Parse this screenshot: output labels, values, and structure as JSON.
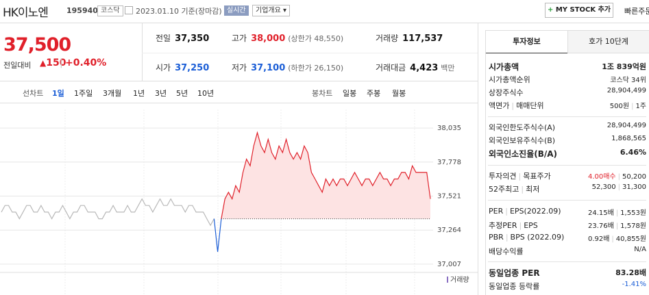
{
  "header": {
    "name": "HK이노엔",
    "code": "195940",
    "market": "코스닥",
    "date_basis": "2023.01.10 기준(장마감)",
    "realtime": "실시간",
    "company_overview": "기업개요",
    "my_stock": "MY STOCK 추가",
    "quick_order": "빠른주문"
  },
  "price": {
    "current": "37,500",
    "change_label": "전일대비",
    "change": "150",
    "change_pct": "+0.40%"
  },
  "summary": [
    [
      {
        "label": "전일",
        "value": "37,350",
        "color": "#111111"
      },
      {
        "label": "고가",
        "value": "38,000",
        "note": "(상한가 48,550)",
        "color": "#e0202a"
      },
      {
        "label": "거래량",
        "value": "117,537",
        "color": "#111111"
      }
    ],
    [
      {
        "label": "시가",
        "value": "37,250",
        "color": "#1a5dd6"
      },
      {
        "label": "저가",
        "value": "37,100",
        "note": "(하한가 26,150)",
        "color": "#1a5dd6"
      },
      {
        "label": "거래대금",
        "value": "4,423",
        "note": "백만",
        "color": "#111111"
      }
    ]
  ],
  "chart_tabs": {
    "line_label": "선차트",
    "line_periods": [
      "1일",
      "1주일",
      "3개월",
      "1년",
      "3년",
      "5년",
      "10년"
    ],
    "candle_label": "봉차트",
    "candle_periods": [
      "일봉",
      "주봉",
      "월봉"
    ]
  },
  "chart_data": {
    "type": "line",
    "ylim": [
      36960,
      38175
    ],
    "yticks": [
      {
        "value": 38035,
        "label": "38,035"
      },
      {
        "value": 37778,
        "label": "37,778"
      },
      {
        "value": 37521,
        "label": "37,521"
      },
      {
        "value": 37264,
        "label": "37,264"
      },
      {
        "value": 37007,
        "label": "37,007"
      }
    ],
    "baseline": 37350,
    "volume_label": "거래량",
    "grid": true,
    "series": [
      {
        "color": "#b8b8b8",
        "values": [
          37400,
          37450,
          37450,
          37400,
          37400,
          37350,
          37400,
          37450,
          37450,
          37400,
          37400,
          37450,
          37400,
          37400,
          37350,
          37400,
          37400,
          37450,
          37400,
          37350,
          37400,
          37400,
          37450,
          37450,
          37400,
          37400,
          37400,
          37350,
          37350,
          37400,
          37400,
          37450,
          37400,
          37400,
          37400,
          37450,
          37400,
          37400,
          37450,
          37500,
          37450,
          37450,
          37400,
          37450,
          37500,
          37450,
          37450,
          37500,
          37450,
          37450,
          37450,
          37400,
          37450,
          37450,
          37400,
          37400,
          37400,
          37350,
          37300,
          37350,
          null,
          null,
          null,
          null,
          null,
          null,
          null,
          null,
          null,
          null,
          null,
          null,
          null,
          null,
          null,
          null,
          null,
          null,
          null,
          null,
          null,
          null,
          null,
          null,
          null,
          null,
          null,
          null,
          null,
          null,
          null,
          null,
          null,
          null,
          null,
          null,
          null,
          null,
          null,
          null,
          null,
          null,
          null,
          null,
          null,
          null,
          null,
          null,
          null,
          null,
          null,
          null,
          null,
          null,
          null,
          null,
          null,
          null,
          null,
          null
        ]
      },
      {
        "color": "#1a5dd6",
        "values": [
          null,
          null,
          null,
          null,
          null,
          null,
          null,
          null,
          null,
          null,
          null,
          null,
          null,
          null,
          null,
          null,
          null,
          null,
          null,
          null,
          null,
          null,
          null,
          null,
          null,
          null,
          null,
          null,
          null,
          null,
          null,
          null,
          null,
          null,
          null,
          null,
          null,
          null,
          null,
          null,
          null,
          null,
          null,
          null,
          null,
          null,
          null,
          null,
          null,
          null,
          null,
          null,
          null,
          null,
          null,
          null,
          null,
          null,
          null,
          37350,
          37100,
          37350,
          null,
          null,
          null,
          null,
          null,
          null,
          null,
          null,
          null,
          null,
          null,
          null,
          null,
          null,
          null,
          null,
          null,
          null,
          null,
          null,
          null,
          null,
          null,
          null,
          null,
          null,
          null,
          null,
          null,
          null,
          null,
          null,
          null,
          null,
          null,
          null,
          null,
          null,
          null,
          null,
          null,
          null,
          null,
          null,
          null,
          null,
          null,
          null,
          null,
          null,
          null,
          null,
          null,
          null,
          null,
          null
        ]
      },
      {
        "color": "#e0202a",
        "fill": "#fde3e3",
        "values": [
          null,
          null,
          null,
          null,
          null,
          null,
          null,
          null,
          null,
          null,
          null,
          null,
          null,
          null,
          null,
          null,
          null,
          null,
          null,
          null,
          null,
          null,
          null,
          null,
          null,
          null,
          null,
          null,
          null,
          null,
          null,
          null,
          null,
          null,
          null,
          null,
          null,
          null,
          null,
          null,
          null,
          null,
          null,
          null,
          null,
          null,
          null,
          null,
          null,
          null,
          null,
          null,
          null,
          null,
          null,
          null,
          null,
          null,
          null,
          null,
          null,
          37350,
          37500,
          37550,
          37500,
          37600,
          37550,
          37700,
          37800,
          37750,
          37900,
          38000,
          37900,
          37850,
          37950,
          37850,
          37800,
          37900,
          37850,
          37950,
          37850,
          37800,
          37850,
          37800,
          37900,
          37850,
          37700,
          37650,
          37600,
          37550,
          37650,
          37600,
          37650,
          37600,
          37650,
          37650,
          37600,
          37650,
          37700,
          37650,
          37600,
          37650,
          37650,
          37600,
          37650,
          37700,
          37650,
          37650,
          37600,
          37650,
          37650,
          37700,
          37700,
          37650,
          37750,
          37700,
          37700,
          37700,
          37700,
          37500
        ]
      }
    ]
  },
  "invest": {
    "tabs": [
      "투자정보",
      "호가 10단계"
    ],
    "groups": [
      [
        {
          "labels": [
            "시가총액"
          ],
          "values": [
            "1조 839억원"
          ]
        },
        {
          "labels": [
            "시가총액순위"
          ],
          "values": [
            "코스닥 34위"
          ]
        },
        {
          "labels": [
            "상장주식수"
          ],
          "values": [
            "28,904,499"
          ]
        },
        {
          "labels": [
            "액면가",
            "매매단위"
          ],
          "values": [
            "500원",
            "1주"
          ]
        }
      ],
      [
        {
          "labels": [
            "외국인한도주식수(A)"
          ],
          "values": [
            "28,904,499"
          ]
        },
        {
          "labels": [
            "외국인보유주식수(B)"
          ],
          "values": [
            "1,868,565"
          ]
        },
        {
          "labels": [
            "외국인소진율(B/A)"
          ],
          "values": [
            "6.46%"
          ]
        }
      ],
      [
        {
          "labels": [
            "투자의견",
            "목표주가"
          ],
          "values": [
            "4.00매수",
            "50,200"
          ]
        },
        {
          "labels": [
            "52주최고",
            "최저"
          ],
          "values": [
            "52,300",
            "31,300"
          ]
        }
      ],
      [
        {
          "labels": [
            "PER",
            "EPS(2022.09)"
          ],
          "values": [
            "24.15배",
            "1,553원"
          ]
        },
        {
          "labels": [
            "추정PER",
            "EPS"
          ],
          "values": [
            "23.76배",
            "1,578원"
          ]
        },
        {
          "labels": [
            "PBR",
            "BPS (2022.09)"
          ],
          "values": [
            "0.92배",
            "40,855원"
          ]
        },
        {
          "labels": [
            "배당수익률"
          ],
          "values": [
            "N/A"
          ]
        }
      ],
      [
        {
          "labels": [
            "동일업종 PER"
          ],
          "values": [
            "83.28배"
          ]
        },
        {
          "labels": [
            "동일업종 등락률"
          ],
          "values": [
            "-1.41%"
          ]
        }
      ]
    ]
  }
}
